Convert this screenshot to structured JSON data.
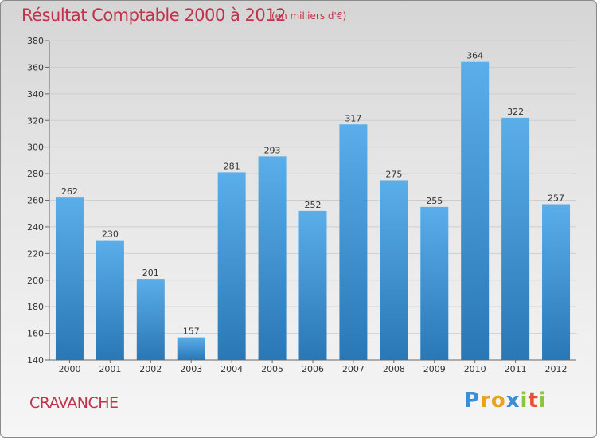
{
  "chart_data": {
    "type": "bar",
    "title": "Résultat Comptable 2000 à 2012",
    "subtitle": "(en milliers d'€)",
    "categories": [
      "2000",
      "2001",
      "2002",
      "2003",
      "2004",
      "2005",
      "2006",
      "2007",
      "2008",
      "2009",
      "2010",
      "2011",
      "2012"
    ],
    "values": [
      262,
      230,
      201,
      157,
      281,
      293,
      252,
      317,
      275,
      255,
      364,
      322,
      257
    ],
    "ylim": [
      140,
      380
    ],
    "yticks": [
      140,
      160,
      180,
      200,
      220,
      240,
      260,
      280,
      300,
      320,
      340,
      360,
      380
    ],
    "grid": true,
    "bar_color_top": "#5aaee9",
    "bar_color_bottom": "#2a77b6"
  },
  "commune": "CRAVANCHE",
  "logo": {
    "letters": [
      "P",
      "r",
      "o",
      "x",
      "i",
      "t",
      "i"
    ],
    "colors": [
      "#3a8fd6",
      "#e8a21b",
      "#e8a21b",
      "#3a8fd6",
      "#8bc43f",
      "#e8512b",
      "#8bc43f"
    ]
  }
}
